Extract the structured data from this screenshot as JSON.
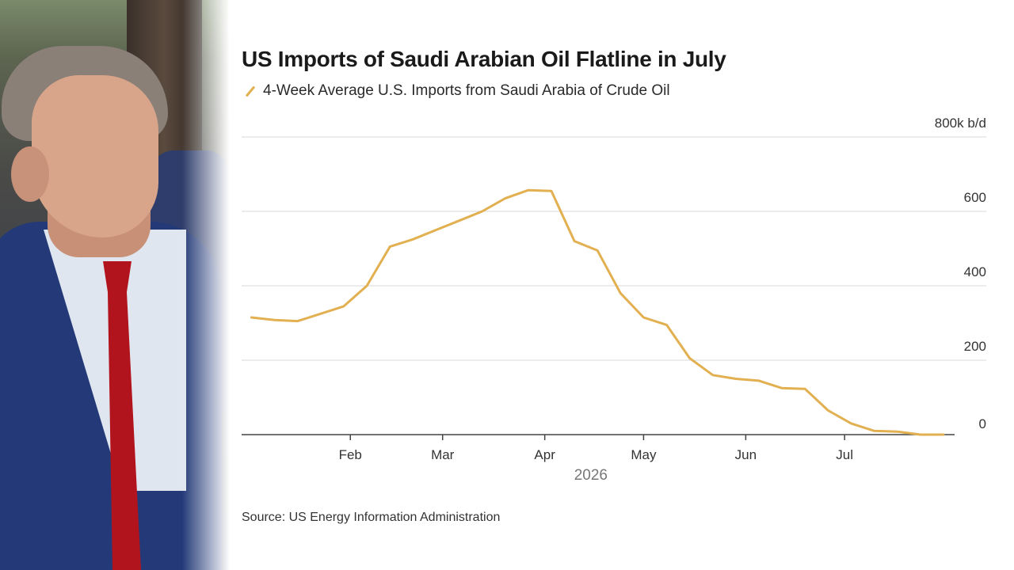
{
  "colors": {
    "series": "#e2b050",
    "grid": "#d8d8d8",
    "axis": "#444444"
  },
  "photo": {
    "description_icon": "person-photo"
  },
  "chart_data": {
    "type": "line",
    "title": "US Imports of Saudi Arabian Oil Flatline in July",
    "series": [
      {
        "name": "4-Week Average U.S. Imports from Saudi Arabia of Crude Oil",
        "x": [
          "2026-01-02",
          "2026-01-09",
          "2026-01-16",
          "2026-01-23",
          "2026-01-30",
          "2026-02-06",
          "2026-02-13",
          "2026-02-20",
          "2026-02-27",
          "2026-03-06",
          "2026-03-13",
          "2026-03-20",
          "2026-03-27",
          "2026-04-03",
          "2026-04-10",
          "2026-04-17",
          "2026-04-24",
          "2026-05-01",
          "2026-05-08",
          "2026-05-15",
          "2026-05-22",
          "2026-05-29",
          "2026-06-05",
          "2026-06-12",
          "2026-06-19",
          "2026-06-26",
          "2026-07-03",
          "2026-07-10",
          "2026-07-17",
          "2026-07-24",
          "2026-07-31"
        ],
        "values": [
          315,
          308,
          305,
          325,
          345,
          400,
          505,
          525,
          550,
          575,
          600,
          635,
          657,
          655,
          520,
          495,
          380,
          315,
          295,
          205,
          160,
          150,
          145,
          125,
          123,
          65,
          30,
          10,
          8,
          0,
          0
        ]
      }
    ],
    "ylabel": "",
    "y_unit_label": "800k b/d",
    "ylim": [
      0,
      800
    ],
    "yticks": [
      "0",
      "200",
      "400",
      "600"
    ],
    "xticks": [
      {
        "label": "Feb",
        "date": "2026-02-01"
      },
      {
        "label": "Mar",
        "date": "2026-03-01"
      },
      {
        "label": "Apr",
        "date": "2026-04-01"
      },
      {
        "label": "May",
        "date": "2026-05-01"
      },
      {
        "label": "Jun",
        "date": "2026-06-01"
      },
      {
        "label": "Jul",
        "date": "2026-07-01"
      }
    ],
    "xlim": [
      "2025-12-30",
      "2026-08-13"
    ],
    "year_label": "2026",
    "grid": true,
    "y_axis_side": "right",
    "source": "Source: US Energy Information Administration"
  }
}
